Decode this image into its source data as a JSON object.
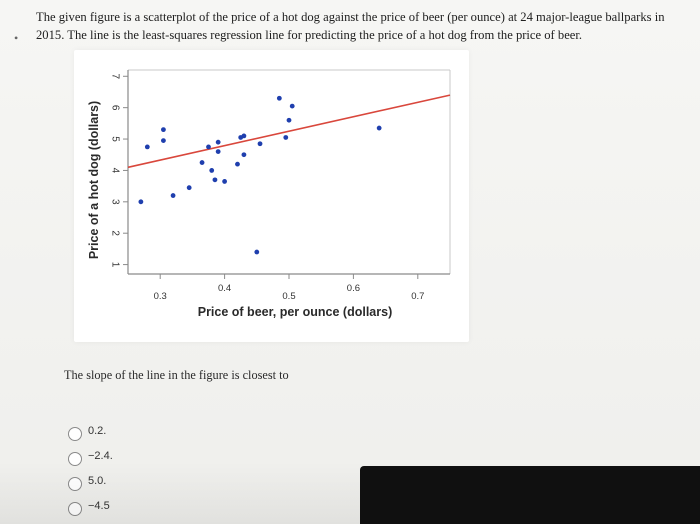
{
  "question": {
    "text": "The given figure is a scatterplot of the price of a hot dog against the price of beer (per ounce) at 24 major-league ballparks in 2015. The line is the least-squares regression line for predicting the price of a hot dog from the price of beer."
  },
  "prompt": "The slope of the line in the figure is closest to",
  "options": [
    {
      "label": "0.2."
    },
    {
      "label": "−2.4."
    },
    {
      "label": "5.0."
    },
    {
      "label": "−4.5"
    }
  ],
  "colors": {
    "points": "#1f3fae",
    "regression_line": "#d9473c",
    "axis": "#8a8a8a"
  },
  "chart_data": {
    "type": "scatter",
    "xlabel": "Price of beer, per ounce (dollars)",
    "ylabel": "Price of a hot dog (dollars)",
    "xlim": [
      0.25,
      0.75
    ],
    "ylim": [
      0.7,
      7.2
    ],
    "x_ticks": [
      0.3,
      0.4,
      0.5,
      0.6,
      0.7
    ],
    "x_tick_labels": [
      "0.3",
      "0.4",
      "0.5",
      "0.6",
      "0.7"
    ],
    "y_ticks": [
      1,
      2,
      3,
      4,
      5,
      6,
      7
    ],
    "y_tick_labels": [
      "1",
      "2",
      "3",
      "4",
      "5",
      "6",
      "7"
    ],
    "points": [
      {
        "x": 0.27,
        "y": 3.0
      },
      {
        "x": 0.28,
        "y": 4.75
      },
      {
        "x": 0.305,
        "y": 5.3
      },
      {
        "x": 0.305,
        "y": 4.95
      },
      {
        "x": 0.32,
        "y": 3.2
      },
      {
        "x": 0.345,
        "y": 3.45
      },
      {
        "x": 0.365,
        "y": 4.25
      },
      {
        "x": 0.375,
        "y": 4.75
      },
      {
        "x": 0.38,
        "y": 4.0
      },
      {
        "x": 0.385,
        "y": 3.7
      },
      {
        "x": 0.39,
        "y": 4.9
      },
      {
        "x": 0.39,
        "y": 4.6
      },
      {
        "x": 0.4,
        "y": 3.65
      },
      {
        "x": 0.42,
        "y": 4.2
      },
      {
        "x": 0.425,
        "y": 5.05
      },
      {
        "x": 0.43,
        "y": 4.5
      },
      {
        "x": 0.43,
        "y": 5.1
      },
      {
        "x": 0.45,
        "y": 1.4
      },
      {
        "x": 0.455,
        "y": 4.85
      },
      {
        "x": 0.485,
        "y": 6.3
      },
      {
        "x": 0.495,
        "y": 5.05
      },
      {
        "x": 0.5,
        "y": 5.6
      },
      {
        "x": 0.505,
        "y": 6.05
      },
      {
        "x": 0.64,
        "y": 5.35
      }
    ],
    "regression_line": {
      "x": [
        0.25,
        0.75
      ],
      "y": [
        4.1,
        6.4
      ]
    }
  }
}
